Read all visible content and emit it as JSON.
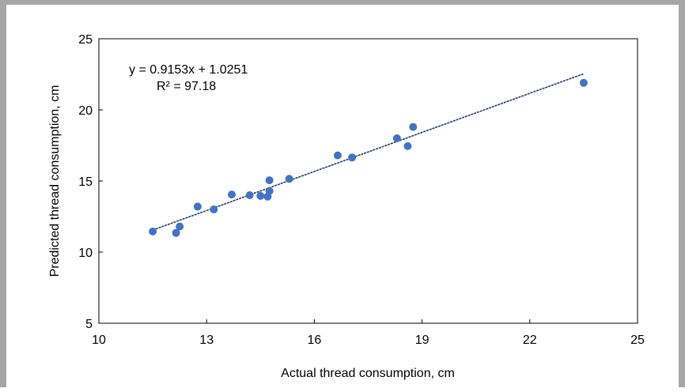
{
  "chart_data": {
    "type": "scatter",
    "xlabel": "Actual thread consumption, cm",
    "ylabel": "Predicted thread consumption, cm",
    "xlim": [
      10,
      25
    ],
    "ylim": [
      5,
      25
    ],
    "xticks": [
      10,
      13,
      16,
      19,
      22,
      25
    ],
    "yticks": [
      5,
      10,
      15,
      20,
      25
    ],
    "grid": false,
    "legend": "none",
    "series": [
      {
        "color": "#4472c4",
        "points": [
          [
            11.5,
            11.45
          ],
          [
            12.15,
            11.35
          ],
          [
            12.25,
            11.8
          ],
          [
            12.75,
            13.2
          ],
          [
            13.2,
            13.0
          ],
          [
            13.7,
            14.05
          ],
          [
            14.2,
            14.0
          ],
          [
            14.5,
            13.95
          ],
          [
            14.7,
            13.9
          ],
          [
            14.75,
            14.3
          ],
          [
            14.75,
            15.05
          ],
          [
            15.3,
            15.15
          ],
          [
            16.65,
            16.8
          ],
          [
            17.05,
            16.65
          ],
          [
            18.3,
            18.0
          ],
          [
            18.6,
            17.45
          ],
          [
            18.75,
            18.8
          ],
          [
            23.5,
            21.9
          ]
        ]
      }
    ],
    "trendline": {
      "slope": 0.9153,
      "intercept": 1.0251,
      "x_range": [
        11.5,
        23.5
      ],
      "color": "#1f3864"
    },
    "annotations": {
      "equation": "y = 0.9153x + 1.0251",
      "r_squared": "R² = 97.18"
    }
  }
}
